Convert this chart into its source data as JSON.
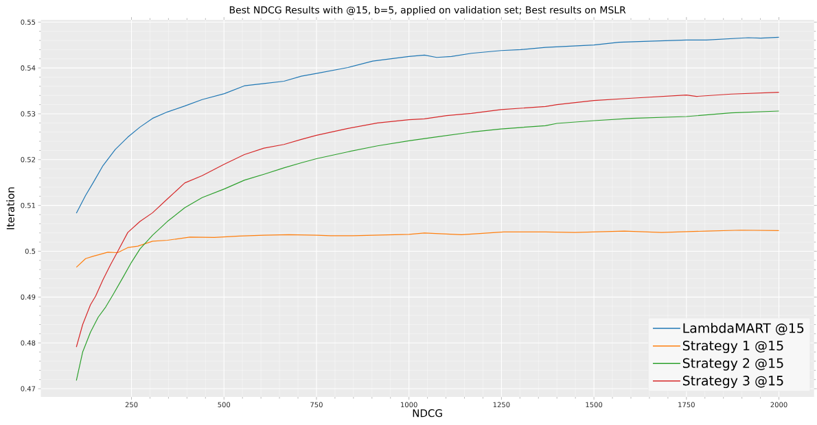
{
  "chart_data": {
    "type": "line",
    "title": "Best NDCG Results with @15, b=5, applied on validation set; Best results on MSLR",
    "xlabel": "NDCG",
    "ylabel": "Iteration",
    "xlim": [
      5,
      2095
    ],
    "ylim": [
      0.4682,
      0.5505
    ],
    "xticks": [
      250,
      500,
      750,
      1000,
      1250,
      1500,
      1750,
      2000
    ],
    "yticks": [
      0.47,
      0.48,
      0.49,
      0.5,
      0.51,
      0.52,
      0.53,
      0.54,
      0.55
    ],
    "grid": true,
    "legend": "bottom right",
    "line_style": "solid",
    "marker": "none",
    "series": [
      {
        "name": "LambdaMART @15",
        "color": "#1f77b4",
        "x": [
          101,
          126,
          146,
          173,
          206,
          240,
          273,
          307,
          347,
          394,
          441,
          501,
          555,
          608,
          662,
          709,
          750,
          835,
          902,
          1000,
          1042,
          1075,
          1115,
          1169,
          1249,
          1302,
          1369,
          1500,
          1568,
          1635,
          1750,
          1804,
          1917,
          1951,
          2000
        ],
        "values": [
          0.5083,
          0.5122,
          0.5149,
          0.5187,
          0.5222,
          0.5249,
          0.5271,
          0.529,
          0.5304,
          0.5317,
          0.5331,
          0.5344,
          0.5361,
          0.5366,
          0.5371,
          0.5382,
          0.5388,
          0.5401,
          0.5415,
          0.5425,
          0.5428,
          0.5423,
          0.5425,
          0.5432,
          0.5438,
          0.544,
          0.5445,
          0.545,
          0.5456,
          0.5458,
          0.5461,
          0.5461,
          0.5466,
          0.5465,
          0.5467
        ]
      },
      {
        "name": "Strategy 1 @15",
        "color": "#ff7f0e",
        "x": [
          101,
          126,
          146,
          173,
          186,
          213,
          240,
          267,
          307,
          347,
          408,
          474,
          541,
          608,
          675,
          750,
          788,
          848,
          1000,
          1042,
          1142,
          1256,
          1369,
          1448,
          1582,
          1683,
          1804,
          1897,
          2000
        ],
        "values": [
          0.4965,
          0.4984,
          0.4989,
          0.4995,
          0.4998,
          0.4997,
          0.5008,
          0.5011,
          0.5022,
          0.5024,
          0.5031,
          0.503,
          0.5033,
          0.5035,
          0.5036,
          0.5035,
          0.5034,
          0.5034,
          0.5037,
          0.504,
          0.5036,
          0.5042,
          0.5042,
          0.5041,
          0.5044,
          0.5041,
          0.5044,
          0.5046,
          0.5045
        ]
      },
      {
        "name": "Strategy 2 @15",
        "color": "#2ca02c",
        "x": [
          101,
          118,
          139,
          160,
          180,
          200,
          227,
          250,
          273,
          307,
          347,
          394,
          441,
          501,
          555,
          608,
          662,
          709,
          750,
          835,
          915,
          1000,
          1069,
          1169,
          1249,
          1369,
          1400,
          1500,
          1602,
          1750,
          1871,
          2000
        ],
        "values": [
          0.4718,
          0.478,
          0.4823,
          0.4856,
          0.4878,
          0.4905,
          0.4943,
          0.4976,
          0.5005,
          0.5035,
          0.5065,
          0.5095,
          0.5117,
          0.5136,
          0.5155,
          0.5168,
          0.5182,
          0.5193,
          0.5202,
          0.5217,
          0.523,
          0.5241,
          0.5249,
          0.526,
          0.5267,
          0.5274,
          0.5279,
          0.5285,
          0.529,
          0.5294,
          0.5302,
          0.5306
        ]
      },
      {
        "name": "Strategy 3 @15",
        "color": "#d62728",
        "x": [
          101,
          118,
          139,
          153,
          173,
          193,
          213,
          240,
          273,
          307,
          347,
          394,
          441,
          501,
          555,
          608,
          662,
          709,
          750,
          835,
          915,
          1000,
          1042,
          1102,
          1169,
          1249,
          1369,
          1400,
          1500,
          1602,
          1750,
          1777,
          1871,
          2000
        ],
        "values": [
          0.4791,
          0.484,
          0.4883,
          0.4902,
          0.4938,
          0.497,
          0.5,
          0.5041,
          0.5065,
          0.5084,
          0.5114,
          0.5149,
          0.5165,
          0.519,
          0.5211,
          0.5225,
          0.5233,
          0.5244,
          0.5253,
          0.5268,
          0.528,
          0.5287,
          0.5289,
          0.5296,
          0.5301,
          0.5309,
          0.5316,
          0.532,
          0.5329,
          0.5334,
          0.5341,
          0.5338,
          0.5343,
          0.5347
        ]
      }
    ]
  }
}
